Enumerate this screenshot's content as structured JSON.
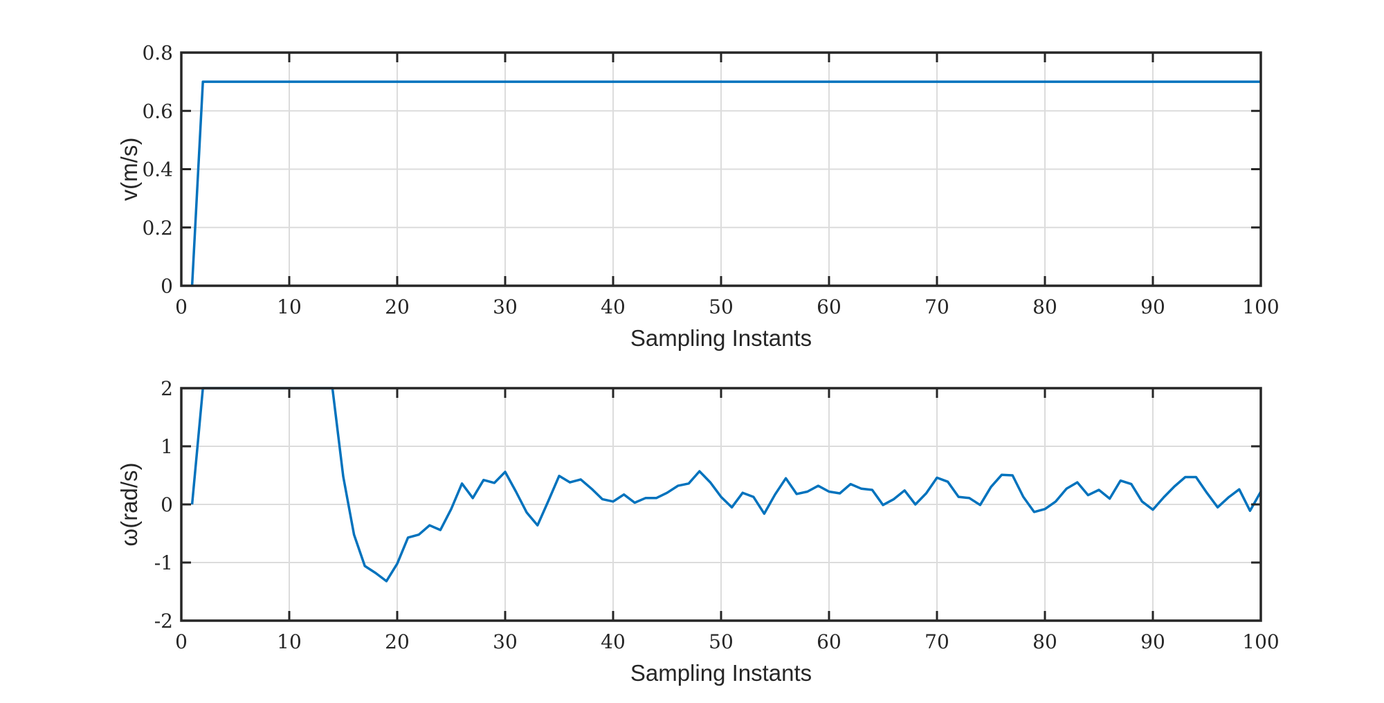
{
  "chart_data": [
    {
      "type": "line",
      "xlabel": "Sampling Instants",
      "ylabel": "v(m/s)",
      "xlim": [
        0,
        100
      ],
      "ylim": [
        0,
        0.8
      ],
      "xticks": [
        0,
        10,
        20,
        30,
        40,
        50,
        60,
        70,
        80,
        90,
        100
      ],
      "yticks": [
        0,
        0.2,
        0.4,
        0.6,
        0.8
      ],
      "xtick_labels": [
        "0",
        "10",
        "20",
        "30",
        "40",
        "50",
        "60",
        "70",
        "80",
        "90",
        "100"
      ],
      "ytick_labels": [
        "0",
        "0.2",
        "0.4",
        "0.6",
        "0.8"
      ],
      "grid": true,
      "color": "#0072BD",
      "series": [
        {
          "x": [
            1,
            2,
            100
          ],
          "y": [
            0,
            0.7,
            0.7
          ]
        }
      ]
    },
    {
      "type": "line",
      "xlabel": "Sampling Instants",
      "ylabel": "ω(rad/s)",
      "xlim": [
        0,
        100
      ],
      "ylim": [
        -2,
        2
      ],
      "xticks": [
        0,
        10,
        20,
        30,
        40,
        50,
        60,
        70,
        80,
        90,
        100
      ],
      "yticks": [
        -2,
        -1,
        0,
        1,
        2
      ],
      "xtick_labels": [
        "0",
        "10",
        "20",
        "30",
        "40",
        "50",
        "60",
        "70",
        "80",
        "90",
        "100"
      ],
      "ytick_labels": [
        "-2",
        "-1",
        "0",
        "1",
        "2"
      ],
      "grid": true,
      "color": "#0072BD",
      "series": [
        {
          "x": [
            1,
            2,
            3,
            4,
            5,
            6,
            7,
            8,
            9,
            10,
            11,
            12,
            13,
            14,
            15,
            16,
            17,
            18,
            19,
            20,
            21,
            22,
            23,
            24,
            25,
            26,
            27,
            28,
            29,
            30,
            31,
            32,
            33,
            34,
            35,
            36,
            37,
            38,
            39,
            40,
            41,
            42,
            43,
            44,
            45,
            46,
            47,
            48,
            49,
            50,
            51,
            52,
            53,
            54,
            55,
            56,
            57,
            58,
            59,
            60,
            61,
            62,
            63,
            64,
            65,
            66,
            67,
            68,
            69,
            70,
            71,
            72,
            73,
            74,
            75,
            76,
            77,
            78,
            79,
            80,
            81,
            82,
            83,
            84,
            85,
            86,
            87,
            88,
            89,
            90,
            91,
            92,
            93,
            94,
            95,
            96,
            97,
            98,
            99,
            100
          ],
          "y": [
            0,
            2,
            2,
            2,
            2,
            2,
            2,
            2,
            2,
            2,
            2,
            2,
            2,
            2,
            0.48,
            -0.52,
            -1.06,
            -1.18,
            -1.32,
            -1.02,
            -0.57,
            -0.52,
            -0.36,
            -0.44,
            -0.08,
            0.36,
            0.11,
            0.42,
            0.37,
            0.56,
            0.22,
            -0.14,
            -0.36,
            0.06,
            0.49,
            0.38,
            0.43,
            0.27,
            0.09,
            0.05,
            0.17,
            0.03,
            0.11,
            0.11,
            0.2,
            0.32,
            0.36,
            0.57,
            0.38,
            0.13,
            -0.05,
            0.2,
            0.13,
            -0.16,
            0.17,
            0.45,
            0.18,
            0.22,
            0.32,
            0.22,
            0.19,
            0.35,
            0.27,
            0.25,
            -0.01,
            0.09,
            0.24,
            0.0,
            0.19,
            0.46,
            0.39,
            0.13,
            0.11,
            -0.01,
            0.3,
            0.51,
            0.5,
            0.13,
            -0.13,
            -0.08,
            0.05,
            0.27,
            0.38,
            0.16,
            0.25,
            0.1,
            0.41,
            0.35,
            0.05,
            -0.09,
            0.12,
            0.31,
            0.47,
            0.47,
            0.2,
            -0.05,
            0.12,
            0.26,
            -0.11,
            0.22
          ]
        }
      ]
    }
  ]
}
